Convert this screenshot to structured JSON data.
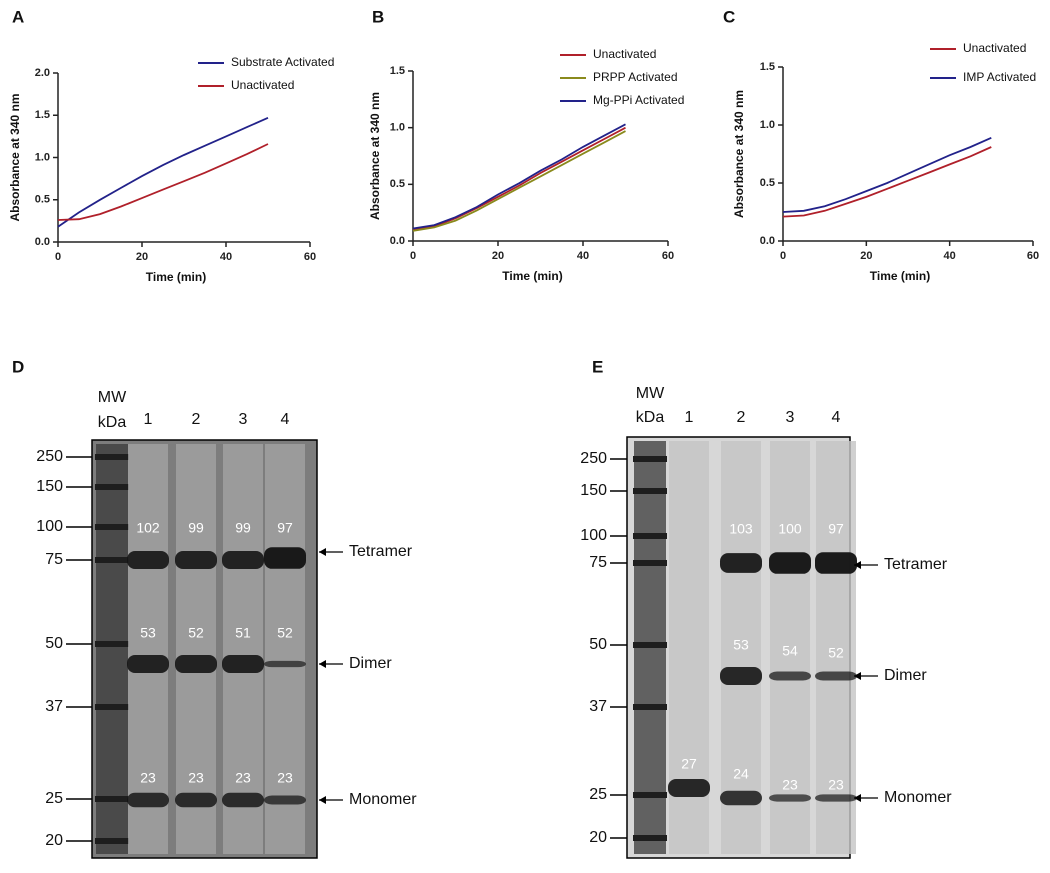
{
  "chart_data": [
    {
      "type": "line",
      "panel": "A",
      "ylabel": "Absorbance at 340 nm",
      "xlabel": "Time (min)",
      "x": [
        0,
        5,
        10,
        15,
        20,
        25,
        30,
        35,
        40,
        45,
        50
      ],
      "xlim": [
        0,
        60
      ],
      "xticks": [
        0,
        20,
        40,
        60
      ],
      "ylim": [
        0,
        2
      ],
      "yticks": [
        {
          "value": 0,
          "label": "0.0"
        },
        {
          "value": 0.5,
          "label": "0.5"
        },
        {
          "value": 1,
          "label": "1.0"
        },
        {
          "value": 1.5,
          "label": "1.5"
        },
        {
          "value": 2,
          "label": "2.0"
        }
      ],
      "legend": "upper center",
      "series": [
        {
          "name": "Substrate Activated",
          "color": "#22228a",
          "values": [
            0.18,
            0.35,
            0.5,
            0.64,
            0.78,
            0.91,
            1.03,
            1.14,
            1.25,
            1.36,
            1.47
          ]
        },
        {
          "name": "Unactivated",
          "color": "#b0202a",
          "values": [
            0.26,
            0.27,
            0.33,
            0.42,
            0.52,
            0.62,
            0.72,
            0.82,
            0.93,
            1.04,
            1.16
          ]
        }
      ]
    },
    {
      "type": "line",
      "panel": "B",
      "ylabel": "Absorbance at 340 nm",
      "xlabel": "Time (min)",
      "x": [
        0,
        5,
        10,
        15,
        20,
        25,
        30,
        35,
        40,
        45,
        50
      ],
      "xlim": [
        0,
        60
      ],
      "xticks": [
        0,
        20,
        40,
        60
      ],
      "ylim": [
        0,
        1.5
      ],
      "yticks": [
        {
          "value": 0,
          "label": "0.0"
        },
        {
          "value": 0.5,
          "label": "0.5"
        },
        {
          "value": 1,
          "label": "1.0"
        },
        {
          "value": 1.5,
          "label": "1.5"
        }
      ],
      "legend": "upper right",
      "series": [
        {
          "name": "Unactivated",
          "color": "#b0202a",
          "values": [
            0.1,
            0.13,
            0.2,
            0.29,
            0.39,
            0.49,
            0.6,
            0.7,
            0.8,
            0.9,
            1.0
          ]
        },
        {
          "name": "PRPP Activated",
          "color": "#8a8a1c",
          "values": [
            0.09,
            0.12,
            0.18,
            0.27,
            0.37,
            0.47,
            0.57,
            0.67,
            0.77,
            0.87,
            0.97
          ]
        },
        {
          "name": "Mg-PPi Activated",
          "color": "#22228a",
          "values": [
            0.11,
            0.14,
            0.21,
            0.3,
            0.41,
            0.51,
            0.62,
            0.72,
            0.83,
            0.93,
            1.03
          ]
        }
      ]
    },
    {
      "type": "line",
      "panel": "C",
      "ylabel": "Absorbance at 340 nm",
      "xlabel": "Time (min)",
      "x": [
        0,
        5,
        10,
        15,
        20,
        25,
        30,
        35,
        40,
        45,
        50
      ],
      "xlim": [
        0,
        60
      ],
      "xticks": [
        0,
        20,
        40,
        60
      ],
      "ylim": [
        0,
        1.5
      ],
      "yticks": [
        {
          "value": 0,
          "label": "0.0"
        },
        {
          "value": 0.5,
          "label": "0.5"
        },
        {
          "value": 1,
          "label": "1.0"
        },
        {
          "value": 1.5,
          "label": "1.5"
        }
      ],
      "legend": "upper right",
      "series": [
        {
          "name": "Unactivated",
          "color": "#b0202a",
          "values": [
            0.21,
            0.22,
            0.26,
            0.32,
            0.38,
            0.45,
            0.52,
            0.59,
            0.66,
            0.73,
            0.81
          ]
        },
        {
          "name": "IMP Activated",
          "color": "#22228a",
          "values": [
            0.25,
            0.26,
            0.3,
            0.36,
            0.43,
            0.5,
            0.58,
            0.66,
            0.74,
            0.81,
            0.89
          ]
        }
      ]
    }
  ],
  "gels": [
    {
      "panel": "D",
      "mw_header": [
        "MW",
        "kDa"
      ],
      "lanes": [
        "1",
        "2",
        "3",
        "4"
      ],
      "markers": [
        "250",
        "150",
        "100",
        "75",
        "50",
        "37",
        "25",
        "20"
      ],
      "band_labels": [
        [
          "102",
          "53",
          "23"
        ],
        [
          "99",
          "52",
          "23"
        ],
        [
          "99",
          "51",
          "23"
        ],
        [
          "97",
          "52",
          "23"
        ]
      ],
      "arrows": [
        "Tetramer",
        "Dimer",
        "Monomer"
      ]
    },
    {
      "panel": "E",
      "mw_header": [
        "MW",
        "kDa"
      ],
      "lanes": [
        "1",
        "2",
        "3",
        "4"
      ],
      "markers": [
        "250",
        "150",
        "100",
        "75",
        "50",
        "37",
        "25",
        "20"
      ],
      "band_labels": [
        [
          "27"
        ],
        [
          "103",
          "53",
          "24"
        ],
        [
          "100",
          "54",
          "23"
        ],
        [
          "97",
          "52",
          "23"
        ]
      ],
      "arrows": [
        "Tetramer",
        "Dimer",
        "Monomer"
      ]
    }
  ]
}
